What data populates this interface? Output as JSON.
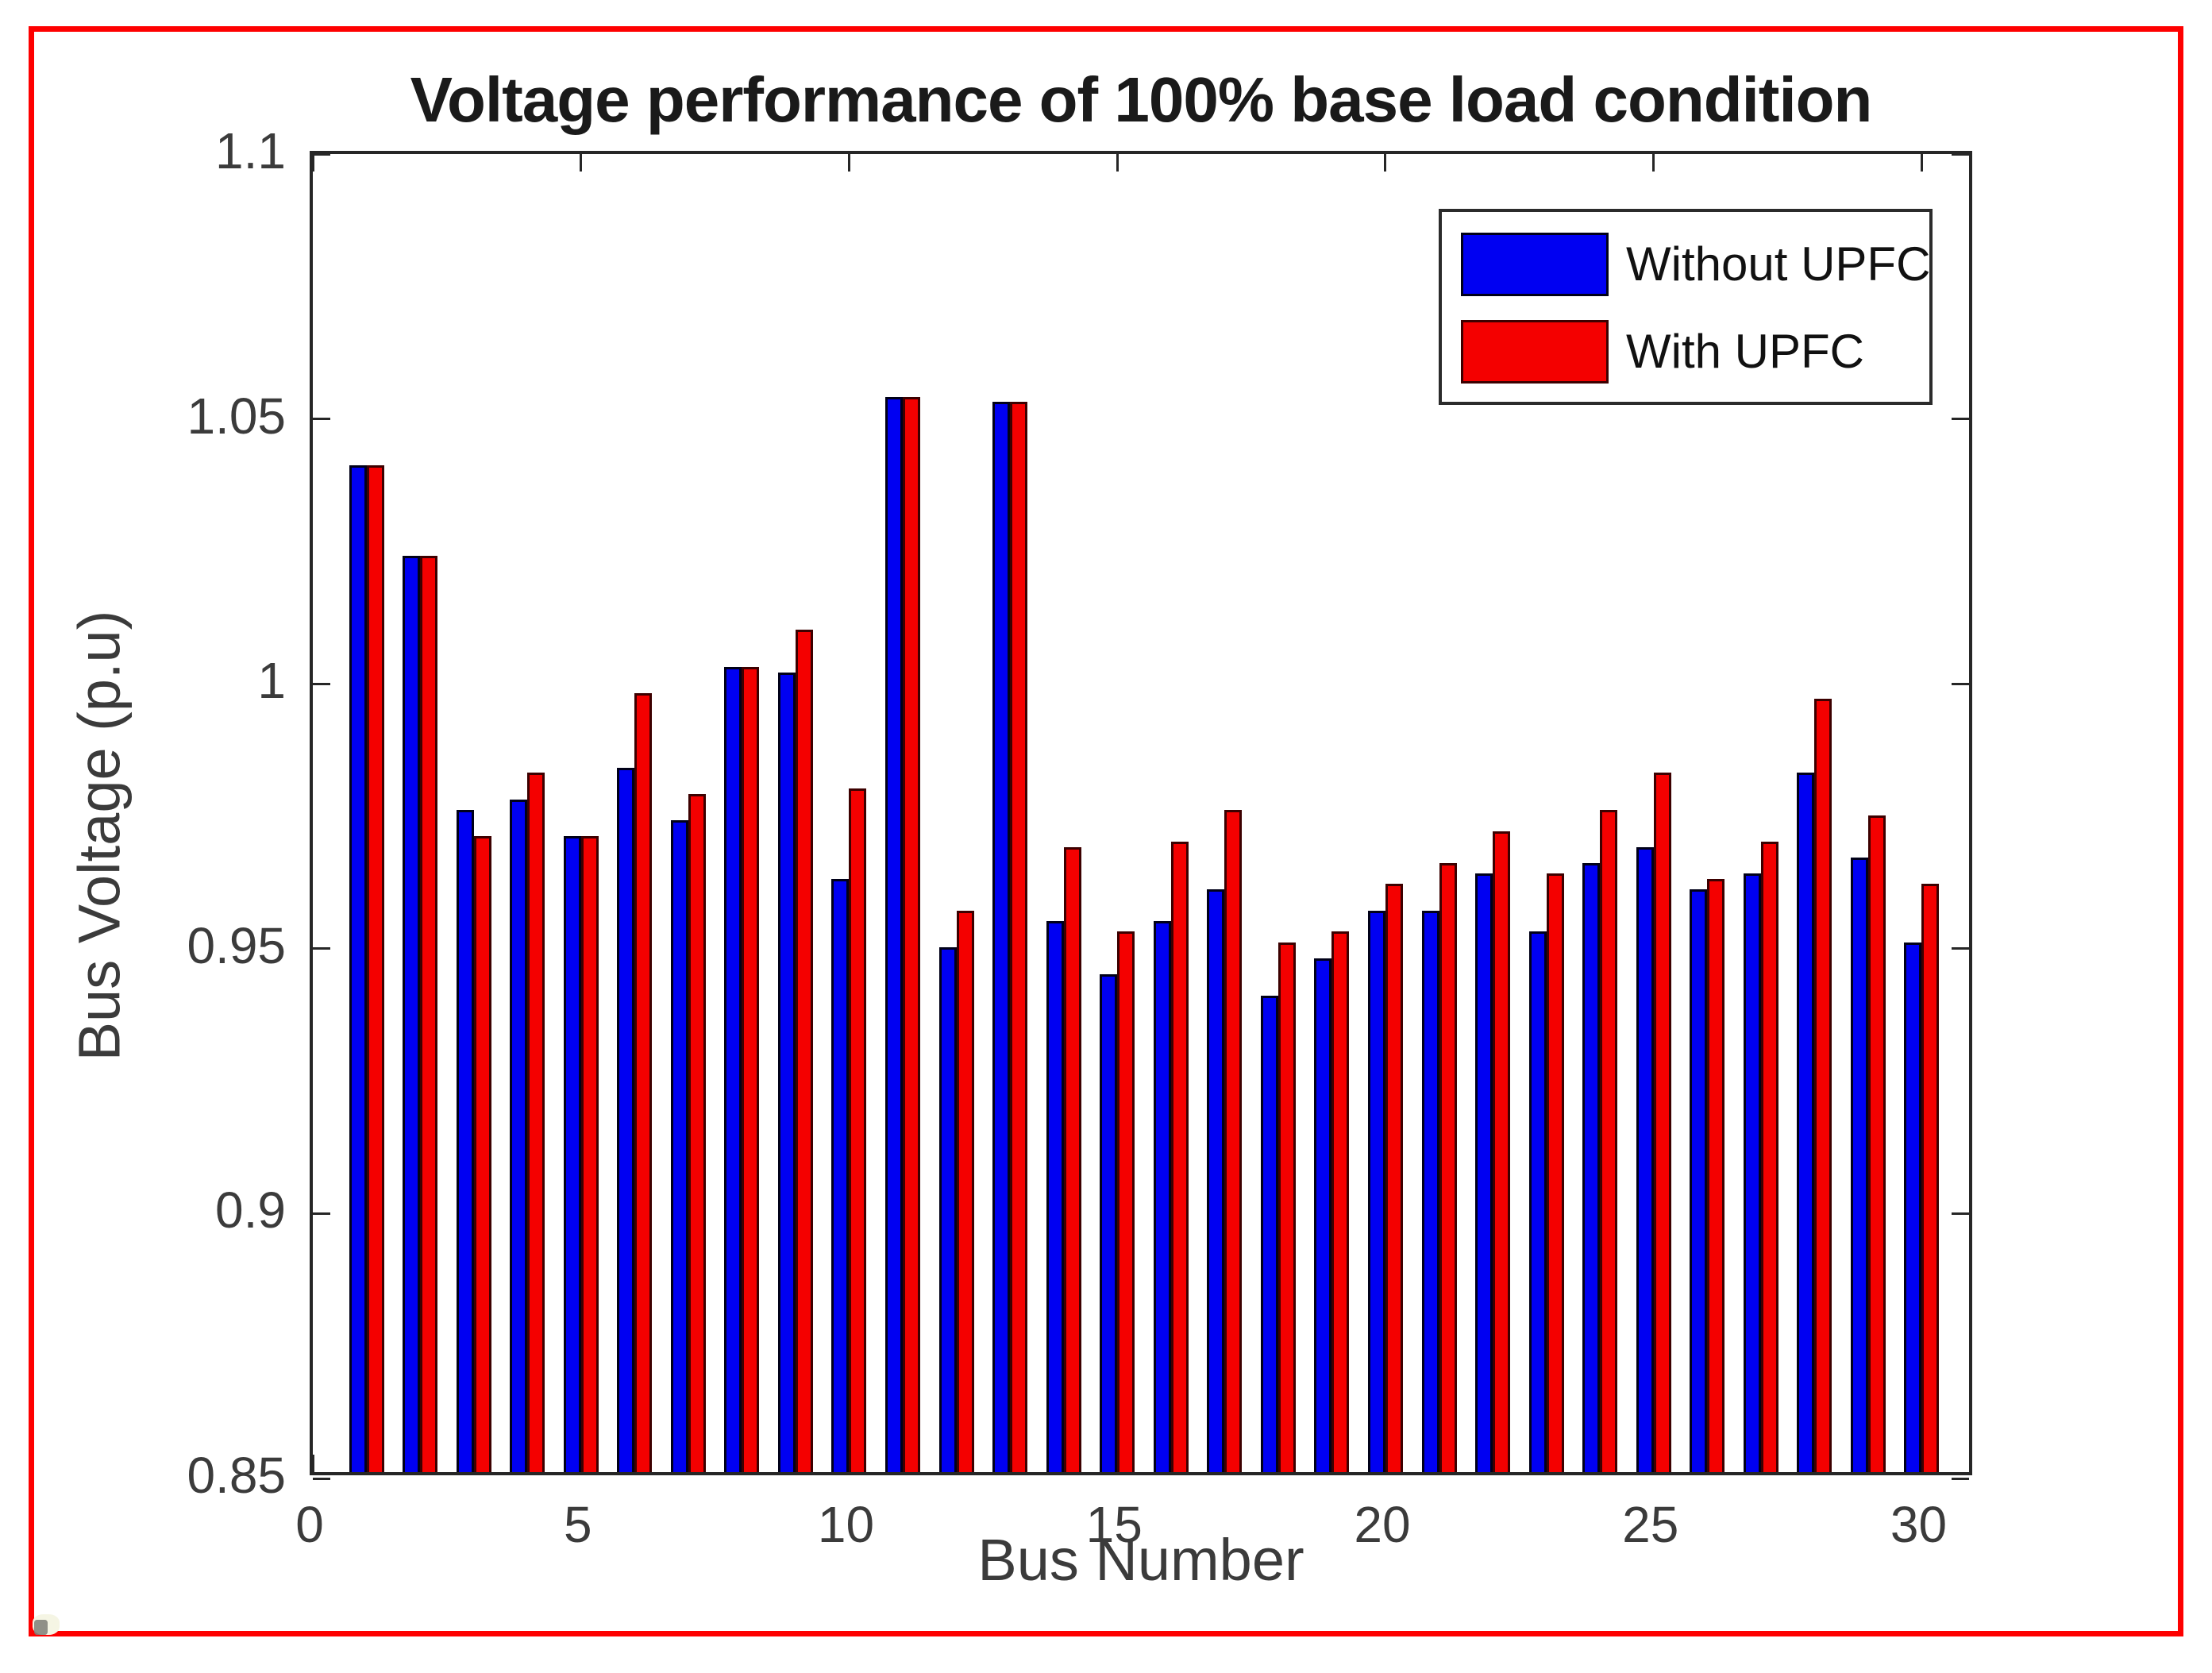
{
  "figure": {
    "border_color": "#fe0000",
    "background": "#ffffff"
  },
  "chart_data": {
    "type": "bar",
    "title": "Voltage performance of 100% base load condition",
    "xlabel": "Bus Number",
    "ylabel": "Bus Voltage (p.u)",
    "xlim": [
      0,
      31
    ],
    "ylim": [
      0.85,
      1.1
    ],
    "xticks": [
      0,
      5,
      10,
      15,
      20,
      25,
      30
    ],
    "xticklabels": [
      "0",
      "5",
      "10",
      "15",
      "20",
      "25",
      "30"
    ],
    "yticks": [
      0.85,
      0.9,
      0.95,
      1,
      1.05,
      1.1
    ],
    "yticklabels": [
      "0.85",
      "0.9",
      "0.95",
      "1",
      "1.05",
      "1.1"
    ],
    "grid": false,
    "legend_position": "top-right",
    "categories": [
      1,
      2,
      3,
      4,
      5,
      6,
      7,
      8,
      9,
      10,
      11,
      12,
      13,
      14,
      15,
      16,
      17,
      18,
      19,
      20,
      21,
      22,
      23,
      24,
      25,
      26,
      27,
      28,
      29,
      30
    ],
    "series": [
      {
        "name": "Without UPFC",
        "color": "#0000f2",
        "edge_color": "#000018",
        "values": [
          1.04,
          1.023,
          0.975,
          0.977,
          0.97,
          0.983,
          0.973,
          1.002,
          1.001,
          0.962,
          1.053,
          0.949,
          1.052,
          0.954,
          0.944,
          0.954,
          0.96,
          0.94,
          0.947,
          0.956,
          0.956,
          0.963,
          0.952,
          0.965,
          0.968,
          0.96,
          0.963,
          0.982,
          0.966,
          0.95
        ]
      },
      {
        "name": "With UPFC",
        "color": "#f40000",
        "edge_color": "#3c0000",
        "values": [
          1.04,
          1.023,
          0.97,
          0.982,
          0.97,
          0.997,
          0.978,
          1.002,
          1.009,
          0.979,
          1.053,
          0.956,
          1.052,
          0.968,
          0.952,
          0.969,
          0.975,
          0.95,
          0.952,
          0.961,
          0.965,
          0.971,
          0.963,
          0.975,
          0.982,
          0.962,
          0.969,
          0.996,
          0.974,
          0.961
        ]
      }
    ]
  }
}
